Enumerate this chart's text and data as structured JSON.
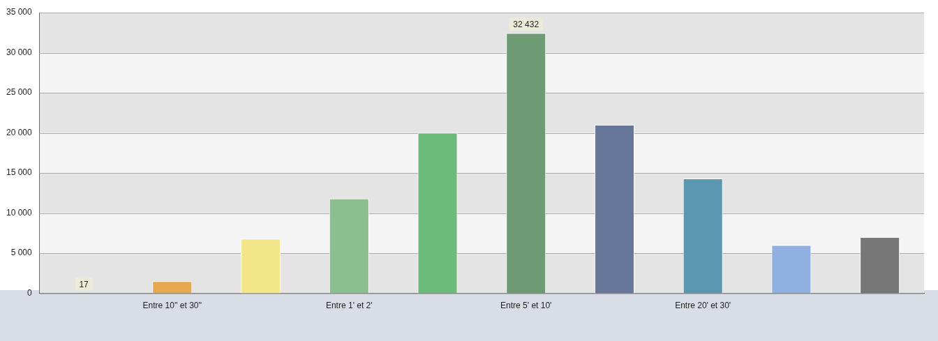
{
  "chart_data": {
    "type": "bar",
    "categories": [
      null,
      "Entre 10'' et 30''",
      null,
      "Entre 1' et 2'",
      null,
      "Entre 5' et 10'",
      null,
      "Entre 20' et 30'",
      null,
      null
    ],
    "values": [
      17,
      1500,
      6800,
      11800,
      20000,
      32432,
      21000,
      14300,
      6000,
      7000
    ],
    "colors": [
      "#e8a84f",
      "#e8a84f",
      "#f3e68a",
      "#8cbf8f",
      "#6cbb7a",
      "#6e9a74",
      "#66779a",
      "#5b97b0",
      "#8fb0e0",
      "#777777"
    ],
    "value_labels": [
      "17",
      null,
      null,
      null,
      null,
      "32 432",
      null,
      null,
      null,
      null
    ],
    "ylim": [
      0,
      35000
    ],
    "yticks": [
      {
        "value": 0,
        "label": "0"
      },
      {
        "value": 5000,
        "label": "5 000"
      },
      {
        "value": 10000,
        "label": "10 000"
      },
      {
        "value": 15000,
        "label": "15 000"
      },
      {
        "value": 20000,
        "label": "20 000"
      },
      {
        "value": 25000,
        "label": "25 000"
      },
      {
        "value": 30000,
        "label": "30 000"
      },
      {
        "value": 35000,
        "label": "35 000"
      }
    ],
    "grid": "y",
    "legend": false
  }
}
